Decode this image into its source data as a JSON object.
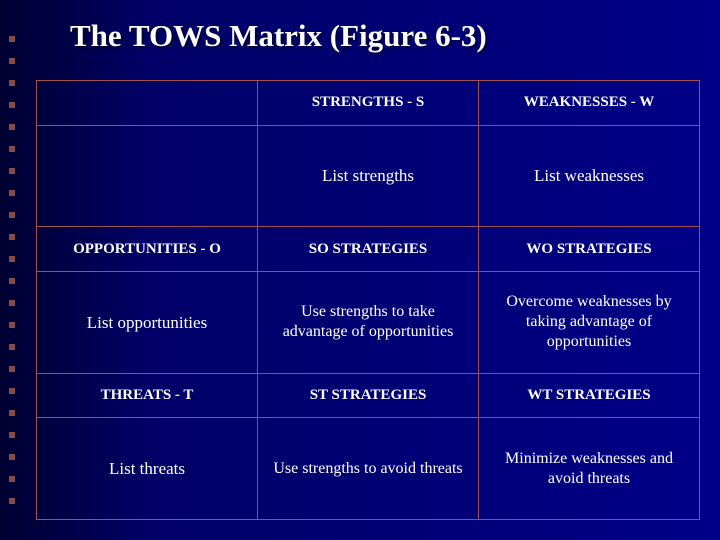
{
  "title": "The TOWS Matrix (Figure 6-3)",
  "colors": {
    "bg_gradient_from": "#000033",
    "bg_gradient_to": "#000088",
    "text": "#ffffff",
    "border": "#a05050",
    "dot": "#8b4a4a"
  },
  "typography": {
    "family": "Times New Roman",
    "title_fontsize_pt": 24,
    "header_fontsize_pt": 12,
    "body_fontsize_pt": 13
  },
  "matrix": {
    "type": "table",
    "rows": 6,
    "cols": 3,
    "cells": {
      "r1c2": "STRENGTHS - S",
      "r1c3": "WEAKNESSES - W",
      "r2c2": "List strengths",
      "r2c3": "List weaknesses",
      "r3c1": "OPPORTUNITIES - O",
      "r3c2": "SO STRATEGIES",
      "r3c3": "WO STRATEGIES",
      "r4c1": "List opportunities",
      "r4c2": "Use strengths to take advantage of opportunities",
      "r4c3": "Overcome weaknesses by taking advantage of opportunities",
      "r5c1": "THREATS - T",
      "r5c2": "ST STRATEGIES",
      "r5c3": "WT STRATEGIES",
      "r6c1": "List threats",
      "r6c2": "Use strengths to avoid threats",
      "r6c3": "Minimize weaknesses and avoid threats"
    }
  }
}
